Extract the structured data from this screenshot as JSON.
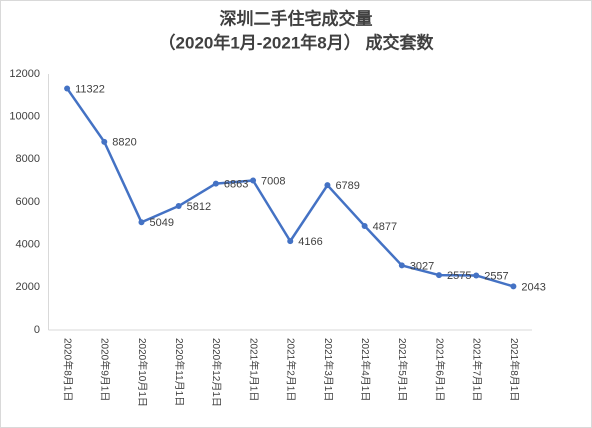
{
  "chart_data": {
    "type": "line",
    "title": "深圳二手住宅成交量",
    "subtitle": "（2020年1月-2021年8月）   成交套数",
    "categories": [
      "2020年8月1日",
      "2020年9月1日",
      "2020年10月1日",
      "2020年11月1日",
      "2020年12月1日",
      "2021年1月1日",
      "2021年2月1日",
      "2021年3月1日",
      "2021年4月1日",
      "2021年5月1日",
      "2021年6月1日",
      "2021年7月1日",
      "2021年8月1日"
    ],
    "series": [
      {
        "name": "成交套数",
        "color": "#4472c4",
        "values": [
          11322,
          8820,
          5049,
          5812,
          6863,
          7008,
          4166,
          6789,
          4877,
          3027,
          2575,
          2557,
          2043
        ]
      }
    ],
    "ylim": [
      0,
      12000
    ],
    "yticks": [
      0,
      2000,
      4000,
      6000,
      8000,
      10000,
      12000
    ],
    "grid": false
  }
}
